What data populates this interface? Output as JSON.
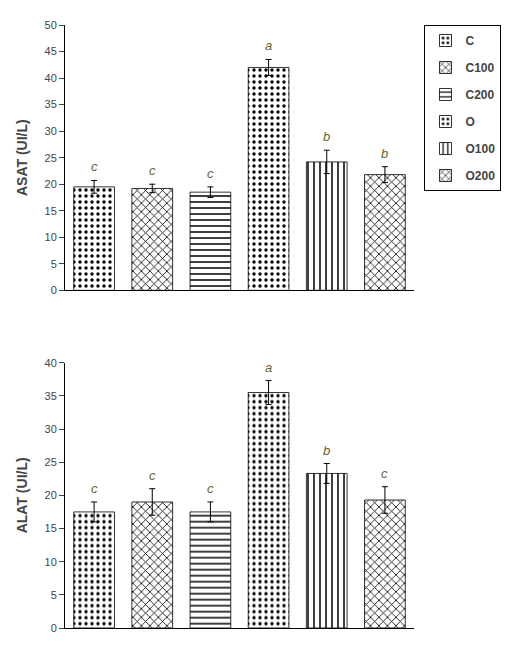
{
  "chart_data": [
    {
      "type": "bar",
      "categories": [
        "C",
        "C100",
        "C200",
        "O",
        "O100",
        "O200"
      ],
      "values": [
        19.5,
        19.2,
        18.5,
        42.0,
        24.2,
        21.8
      ],
      "errors": [
        1.2,
        0.8,
        1.0,
        1.5,
        2.2,
        1.5
      ],
      "annotations": [
        "c",
        "c",
        "c",
        "a",
        "b",
        "b"
      ],
      "ylabel": "ASAT (UI/L)",
      "ylim": [
        0,
        50
      ],
      "yticks": [
        0,
        5,
        10,
        15,
        20,
        25,
        30,
        35,
        40,
        45,
        50
      ],
      "colors": [
        "white",
        "#c8c8c8",
        "white",
        "#404040",
        "white",
        "white"
      ],
      "grid": false,
      "tick_labels": "y",
      "legend": "upper right"
    },
    {
      "type": "bar",
      "categories": [
        "C",
        "C100",
        "C200",
        "O",
        "O100",
        "O200"
      ],
      "values": [
        17.5,
        19.0,
        17.5,
        35.5,
        23.3,
        19.3
      ],
      "errors": [
        1.5,
        2.0,
        1.5,
        1.8,
        1.5,
        2.0
      ],
      "annotations": [
        "c",
        "c",
        "c",
        "a",
        "b",
        "c"
      ],
      "ylabel": "ALAT (UI/L)",
      "ylim": [
        0,
        40
      ],
      "yticks": [
        0,
        5,
        10,
        15,
        20,
        25,
        30,
        35,
        40
      ],
      "colors": [
        "white",
        "#c8c8c8",
        "white",
        "#404040",
        "white",
        "white"
      ],
      "grid": false,
      "tick_labels": "y"
    }
  ]
}
